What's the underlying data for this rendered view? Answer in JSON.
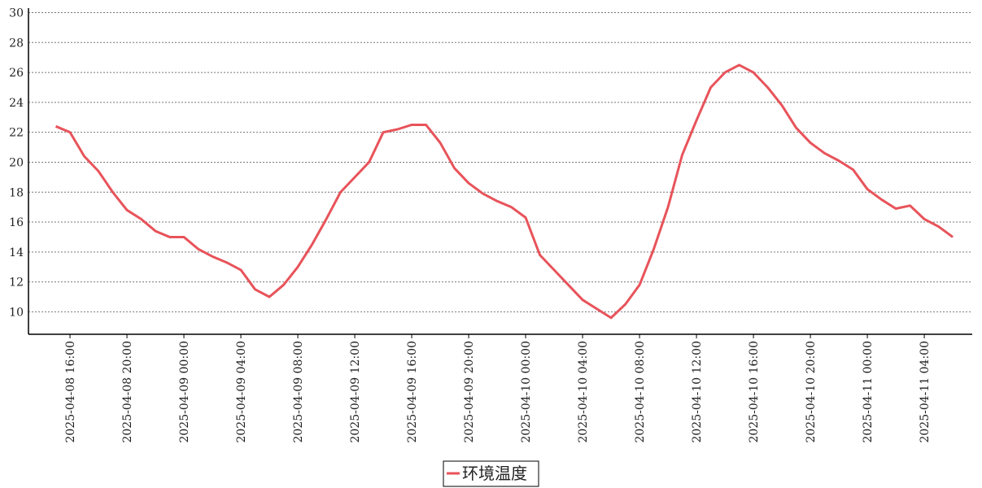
{
  "chart_data": {
    "type": "line",
    "x": [
      "2025-04-08 15:00",
      "2025-04-08 16:00",
      "2025-04-08 17:00",
      "2025-04-08 18:00",
      "2025-04-08 19:00",
      "2025-04-08 20:00",
      "2025-04-08 21:00",
      "2025-04-08 22:00",
      "2025-04-08 23:00",
      "2025-04-09 00:00",
      "2025-04-09 01:00",
      "2025-04-09 02:00",
      "2025-04-09 03:00",
      "2025-04-09 04:00",
      "2025-04-09 05:00",
      "2025-04-09 06:00",
      "2025-04-09 07:00",
      "2025-04-09 08:00",
      "2025-04-09 09:00",
      "2025-04-09 10:00",
      "2025-04-09 11:00",
      "2025-04-09 12:00",
      "2025-04-09 13:00",
      "2025-04-09 14:00",
      "2025-04-09 15:00",
      "2025-04-09 16:00",
      "2025-04-09 17:00",
      "2025-04-09 18:00",
      "2025-04-09 19:00",
      "2025-04-09 20:00",
      "2025-04-09 21:00",
      "2025-04-09 22:00",
      "2025-04-09 23:00",
      "2025-04-10 00:00",
      "2025-04-10 01:00",
      "2025-04-10 02:00",
      "2025-04-10 03:00",
      "2025-04-10 04:00",
      "2025-04-10 05:00",
      "2025-04-10 06:00",
      "2025-04-10 07:00",
      "2025-04-10 08:00",
      "2025-04-10 09:00",
      "2025-04-10 10:00",
      "2025-04-10 11:00",
      "2025-04-10 12:00",
      "2025-04-10 13:00",
      "2025-04-10 14:00",
      "2025-04-10 15:00",
      "2025-04-10 16:00",
      "2025-04-10 17:00",
      "2025-04-10 18:00",
      "2025-04-10 19:00",
      "2025-04-10 20:00",
      "2025-04-10 21:00",
      "2025-04-10 22:00",
      "2025-04-10 23:00",
      "2025-04-11 00:00",
      "2025-04-11 01:00",
      "2025-04-11 02:00",
      "2025-04-11 03:00",
      "2025-04-11 04:00",
      "2025-04-11 05:00",
      "2025-04-11 06:00"
    ],
    "series": [
      {
        "name": "环境温度",
        "color": "#e8535a",
        "values": [
          22.4,
          22.0,
          20.4,
          19.4,
          18.0,
          16.8,
          16.2,
          15.4,
          15.0,
          15.0,
          14.2,
          13.7,
          13.3,
          12.8,
          11.5,
          11.0,
          11.8,
          13.0,
          14.5,
          16.2,
          18.0,
          19.0,
          20.0,
          22.0,
          22.2,
          22.5,
          22.5,
          21.3,
          19.6,
          18.6,
          17.9,
          17.4,
          17.0,
          16.3,
          13.8,
          12.8,
          11.8,
          10.8,
          10.2,
          9.6,
          10.5,
          11.8,
          14.2,
          17.0,
          20.5,
          22.8,
          25.0,
          26.0,
          26.5,
          26.0,
          25.0,
          23.8,
          22.3,
          21.3,
          20.6,
          20.1,
          19.5,
          18.2,
          17.5,
          16.9,
          17.1,
          16.2,
          15.7,
          15.0
        ]
      }
    ],
    "xlim": [
      "2025-04-08 13:05",
      "2025-04-11 07:22"
    ],
    "xticks": [
      "2025-04-08 16:00",
      "2025-04-08 20:00",
      "2025-04-09 00:00",
      "2025-04-09 04:00",
      "2025-04-09 08:00",
      "2025-04-09 12:00",
      "2025-04-09 16:00",
      "2025-04-09 20:00",
      "2025-04-10 00:00",
      "2025-04-10 04:00",
      "2025-04-10 08:00",
      "2025-04-10 12:00",
      "2025-04-10 16:00",
      "2025-04-10 20:00",
      "2025-04-11 00:00",
      "2025-04-11 04:00"
    ],
    "ylim": [
      8.5,
      30.3
    ],
    "yticks": [
      10,
      12,
      14,
      16,
      18,
      20,
      22,
      24,
      26,
      28,
      30
    ],
    "grid": true
  }
}
